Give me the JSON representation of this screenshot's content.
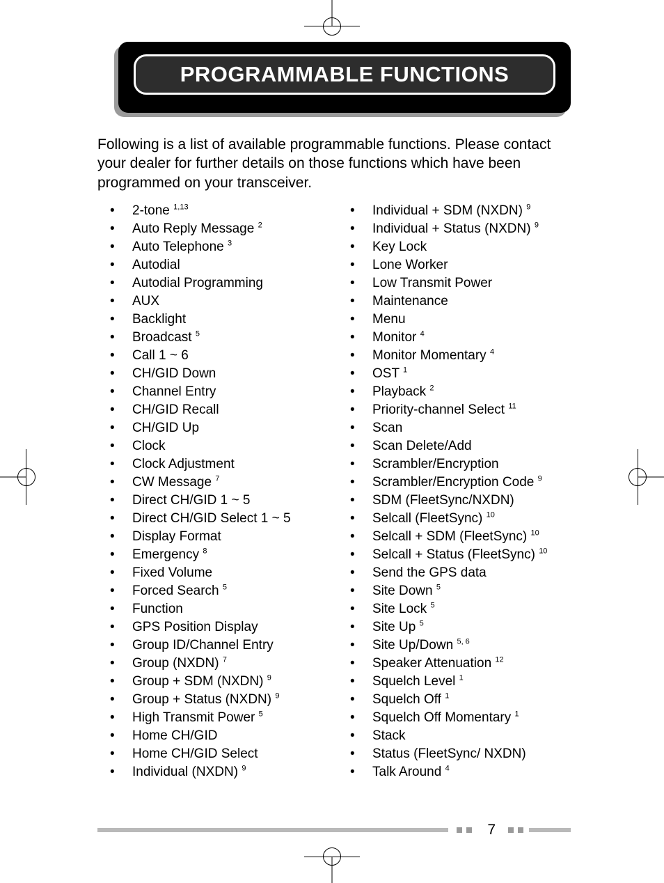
{
  "title": "PROGRAMMABLE FUNCTIONS",
  "intro": "Following is a list of available programmable functions.  Please contact your dealer for further details on those functions which have been programmed on your transceiver.",
  "page_number": "7",
  "colors": {
    "title_bg": "#000000",
    "title_inner_bg": "#2d2d2d",
    "title_text": "#ffffff",
    "body_text": "#000000",
    "footer_bar": "#b9b9b9",
    "footer_sq": "#9a9a9a",
    "shadow": "#9a9a9a"
  },
  "left_column": [
    {
      "text": "2-tone ",
      "sup": "1,13"
    },
    {
      "text": "Auto Reply Message ",
      "sup": "2"
    },
    {
      "text": "Auto Telephone ",
      "sup": "3"
    },
    {
      "text": "Autodial",
      "sup": ""
    },
    {
      "text": "Autodial Programming",
      "sup": ""
    },
    {
      "text": "AUX",
      "sup": ""
    },
    {
      "text": "Backlight",
      "sup": ""
    },
    {
      "text": "Broadcast ",
      "sup": "5"
    },
    {
      "text": "Call 1 ~ 6",
      "sup": ""
    },
    {
      "text": "CH/GID Down",
      "sup": ""
    },
    {
      "text": "Channel Entry",
      "sup": ""
    },
    {
      "text": "CH/GID Recall",
      "sup": ""
    },
    {
      "text": "CH/GID Up",
      "sup": ""
    },
    {
      "text": "Clock",
      "sup": ""
    },
    {
      "text": "Clock Adjustment",
      "sup": ""
    },
    {
      "text": "CW Message ",
      "sup": "7"
    },
    {
      "text": "Direct CH/GID 1 ~ 5",
      "sup": ""
    },
    {
      "text": "Direct CH/GID Select 1 ~ 5",
      "sup": ""
    },
    {
      "text": "Display Format",
      "sup": ""
    },
    {
      "text": "Emergency ",
      "sup": "8"
    },
    {
      "text": "Fixed Volume",
      "sup": ""
    },
    {
      "text": "Forced Search ",
      "sup": "5"
    },
    {
      "text": "Function",
      "sup": ""
    },
    {
      "text": "GPS Position Display",
      "sup": ""
    },
    {
      "text": "Group ID/Channel Entry",
      "sup": ""
    },
    {
      "text": "Group (NXDN) ",
      "sup": "7"
    },
    {
      "text": "Group + SDM (NXDN) ",
      "sup": "9"
    },
    {
      "text": "Group + Status (NXDN) ",
      "sup": "9"
    },
    {
      "text": "High Transmit Power ",
      "sup": "5"
    },
    {
      "text": "Home CH/GID",
      "sup": ""
    },
    {
      "text": "Home CH/GID Select",
      "sup": ""
    },
    {
      "text": "Individual (NXDN) ",
      "sup": "9"
    }
  ],
  "right_column": [
    {
      "text": "Individual + SDM (NXDN) ",
      "sup": "9"
    },
    {
      "text": "Individual + Status (NXDN) ",
      "sup": "9"
    },
    {
      "text": "Key Lock",
      "sup": ""
    },
    {
      "text": "Lone Worker",
      "sup": ""
    },
    {
      "text": "Low Transmit Power",
      "sup": ""
    },
    {
      "text": "Maintenance",
      "sup": ""
    },
    {
      "text": "Menu",
      "sup": ""
    },
    {
      "text": "Monitor ",
      "sup": "4"
    },
    {
      "text": "Monitor Momentary ",
      "sup": "4"
    },
    {
      "text": "OST ",
      "sup": "1"
    },
    {
      "text": "Playback ",
      "sup": "2"
    },
    {
      "text": "Priority-channel Select ",
      "sup": "11"
    },
    {
      "text": "Scan",
      "sup": ""
    },
    {
      "text": "Scan Delete/Add",
      "sup": ""
    },
    {
      "text": "Scrambler/Encryption",
      "sup": ""
    },
    {
      "text": "Scrambler/Encryption Code ",
      "sup": "9"
    },
    {
      "text": "SDM (FleetSync/NXDN)",
      "sup": ""
    },
    {
      "text": "Selcall (FleetSync) ",
      "sup": "10"
    },
    {
      "text": "Selcall + SDM (FleetSync) ",
      "sup": "10"
    },
    {
      "text": "Selcall + Status (FleetSync) ",
      "sup": "10"
    },
    {
      "text": "Send the GPS data",
      "sup": ""
    },
    {
      "text": "Site Down ",
      "sup": "5"
    },
    {
      "text": "Site Lock ",
      "sup": "5"
    },
    {
      "text": "Site Up ",
      "sup": "5"
    },
    {
      "text": "Site Up/Down ",
      "sup": "5, 6"
    },
    {
      "text": "Speaker Attenuation ",
      "sup": "12"
    },
    {
      "text": "Squelch Level ",
      "sup": "1"
    },
    {
      "text": "Squelch Off ",
      "sup": "1"
    },
    {
      "text": "Squelch Off Momentary ",
      "sup": "1"
    },
    {
      "text": "Stack",
      "sup": ""
    },
    {
      "text": "Status (FleetSync/ NXDN)",
      "sup": ""
    },
    {
      "text": "Talk Around ",
      "sup": "4"
    }
  ]
}
